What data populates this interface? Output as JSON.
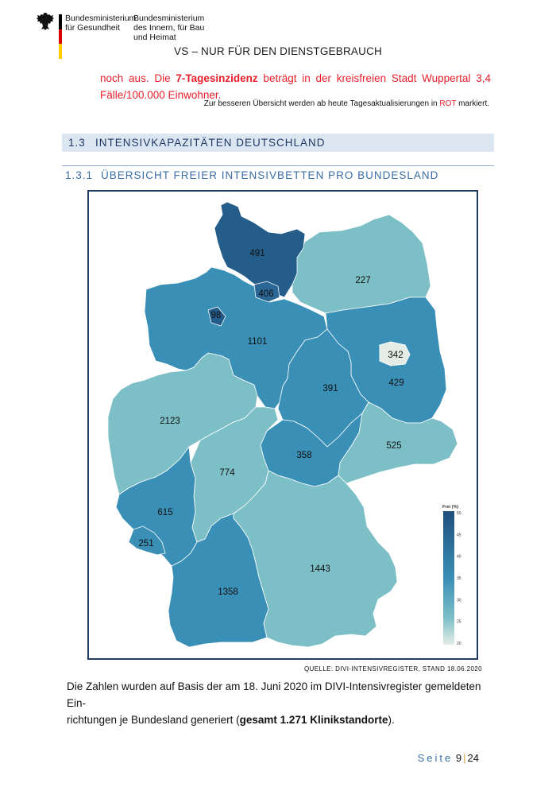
{
  "header": {
    "ministry_health_1": "Bundesministerium",
    "ministry_health_2": "für Gesundheit",
    "ministry_interior_1": "Bundesministerium",
    "ministry_interior_2": "des Innern, für Bau",
    "ministry_interior_3": "und Heimat",
    "flag_colors": [
      "#000000",
      "#dd0000",
      "#ffcc00"
    ]
  },
  "classification": "VS – NUR FÜR DEN DIENSTGEBRAUCH",
  "intro": {
    "lead": "noch aus. Die ",
    "bold": "7-Tagesinzidenz",
    "trail": " beträgt in der kreisfreien Stadt Wuppertal 3,4",
    "line2": "Fälle/100.000 Einwohner."
  },
  "note": {
    "before": "Zur besseren Übersicht werden ab heute Tagesaktualisierungen in ",
    "red_word": "ROT",
    "after": " markiert."
  },
  "section": {
    "number": "1.3",
    "title": "INTENSIVKAPAZITÄTEN DEUTSCHLAND"
  },
  "subsection": {
    "number": "1.3.1",
    "title": "ÜBERSICHT FREIER INTENSIVBETTEN PRO BUNDESLAND"
  },
  "chart_data": {
    "type": "choropleth",
    "legend_title": "Frei (%)",
    "legend_ticks": [
      50,
      45,
      40,
      35,
      30,
      25,
      20
    ],
    "legend_range": [
      20,
      50
    ],
    "regions": [
      {
        "key": "sh",
        "value": "491",
        "color": "#245c8a"
      },
      {
        "key": "hh",
        "value": "406",
        "color": "#2a6794"
      },
      {
        "key": "mv",
        "value": "227",
        "color": "#7dbfc7"
      },
      {
        "key": "hb",
        "value": "98",
        "color": "#245c8a"
      },
      {
        "key": "ni",
        "value": "1101",
        "color": "#3a8fb6"
      },
      {
        "key": "be",
        "value": "342",
        "color": "#e4ece6"
      },
      {
        "key": "bb",
        "value": "429",
        "color": "#3a8fb6"
      },
      {
        "key": "st",
        "value": "391",
        "color": "#3a8fb6"
      },
      {
        "key": "nw",
        "value": "2123",
        "color": "#7dbfc7"
      },
      {
        "key": "sn",
        "value": "525",
        "color": "#7dbfc7"
      },
      {
        "key": "th",
        "value": "358",
        "color": "#3a8fb6"
      },
      {
        "key": "he",
        "value": "774",
        "color": "#7dbfc7"
      },
      {
        "key": "rp",
        "value": "615",
        "color": "#3a8fb6"
      },
      {
        "key": "sl",
        "value": "251",
        "color": "#3a8fb6"
      },
      {
        "key": "by",
        "value": "1443",
        "color": "#7dbfc7"
      },
      {
        "key": "bw",
        "value": "1358",
        "color": "#3a8fb6"
      }
    ]
  },
  "source": "QUELLE: DIVI-INTENSIVREGISTER, STAND 18.06.2020",
  "body": {
    "line1": "Die Zahlen wurden auf Basis der am 18. Juni 2020 im DIVI-Intensivregister gemeldeten Ein-",
    "line2_pre": "richtungen je Bundesland generiert (",
    "line2_bold": "gesamt 1.271 Klinikstandorte",
    "line2_post": ")."
  },
  "footer": {
    "label": "Seite",
    "page": "9",
    "total": "24"
  },
  "colors": {
    "accent_red": "#e8202b",
    "heading_blue": "#3a6ea5",
    "section_bg": "#dce6f1"
  }
}
